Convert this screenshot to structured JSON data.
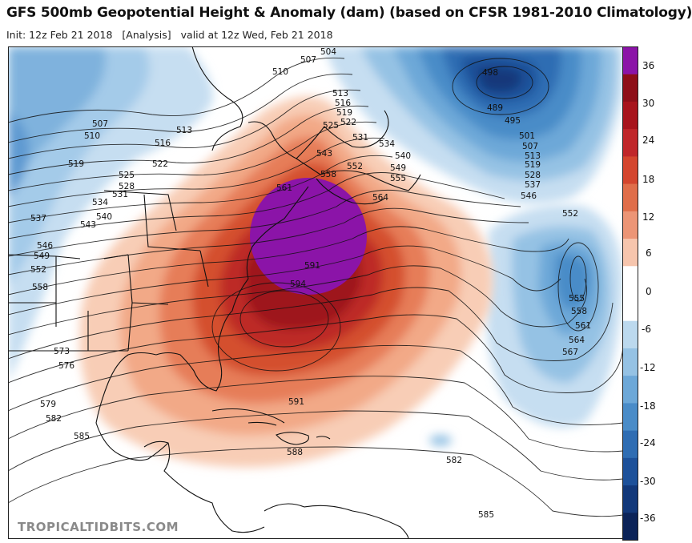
{
  "header": {
    "title": "GFS 500mb Geopotential Height & Anomaly (dam) (based on CFSR 1981-2010 Climatology)",
    "init": "Init: 12z Feb 21 2018",
    "run_type": "[Analysis]",
    "valid": "valid at 12z Wed, Feb 21 2018"
  },
  "watermark": "TROPICALTIDBITS.COM",
  "colorbar": {
    "labels": [
      "36",
      "30",
      "24",
      "18",
      "12",
      "6",
      "0",
      "-6",
      "-12",
      "-18",
      "-24",
      "-30",
      "-36"
    ],
    "colors": [
      "#8b14a8",
      "#8e0f18",
      "#a8141c",
      "#c0272a",
      "#d4462e",
      "#e06e4a",
      "#ec9576",
      "#f6c5ad",
      "#ffffff",
      "#ffffff",
      "#bcd9ee",
      "#95c2e4",
      "#6da8d8",
      "#4a8cc8",
      "#2f6db3",
      "#1d519a",
      "#12387a",
      "#0b2358"
    ]
  },
  "contour_labels": [
    {
      "text": "507"
    },
    {
      "text": "504"
    },
    {
      "text": "510"
    },
    {
      "text": "513"
    },
    {
      "text": "516"
    },
    {
      "text": "519"
    },
    {
      "text": "522"
    },
    {
      "text": "525"
    },
    {
      "text": "531"
    },
    {
      "text": "534"
    },
    {
      "text": "540"
    },
    {
      "text": "543"
    },
    {
      "text": "552"
    },
    {
      "text": "549"
    },
    {
      "text": "555"
    },
    {
      "text": "561"
    },
    {
      "text": "558"
    },
    {
      "text": "564"
    },
    {
      "text": "507"
    },
    {
      "text": "510"
    },
    {
      "text": "513"
    },
    {
      "text": "516"
    },
    {
      "text": "519"
    },
    {
      "text": "522"
    },
    {
      "text": "525"
    },
    {
      "text": "528"
    },
    {
      "text": "531"
    },
    {
      "text": "534"
    },
    {
      "text": "537"
    },
    {
      "text": "540"
    },
    {
      "text": "543"
    },
    {
      "text": "546"
    },
    {
      "text": "549"
    },
    {
      "text": "552"
    },
    {
      "text": "558"
    },
    {
      "text": "573"
    },
    {
      "text": "576"
    },
    {
      "text": "579"
    },
    {
      "text": "582"
    },
    {
      "text": "585"
    },
    {
      "text": "591"
    },
    {
      "text": "588"
    },
    {
      "text": "582"
    },
    {
      "text": "585"
    },
    {
      "text": "498"
    },
    {
      "text": "489"
    },
    {
      "text": "495"
    },
    {
      "text": "501"
    },
    {
      "text": "507"
    },
    {
      "text": "513"
    },
    {
      "text": "519"
    },
    {
      "text": "528"
    },
    {
      "text": "537"
    },
    {
      "text": "546"
    },
    {
      "text": "552"
    },
    {
      "text": "555"
    },
    {
      "text": "558"
    },
    {
      "text": "561"
    },
    {
      "text": "564"
    },
    {
      "text": "567"
    },
    {
      "text": "591"
    },
    {
      "text": "594"
    }
  ]
}
